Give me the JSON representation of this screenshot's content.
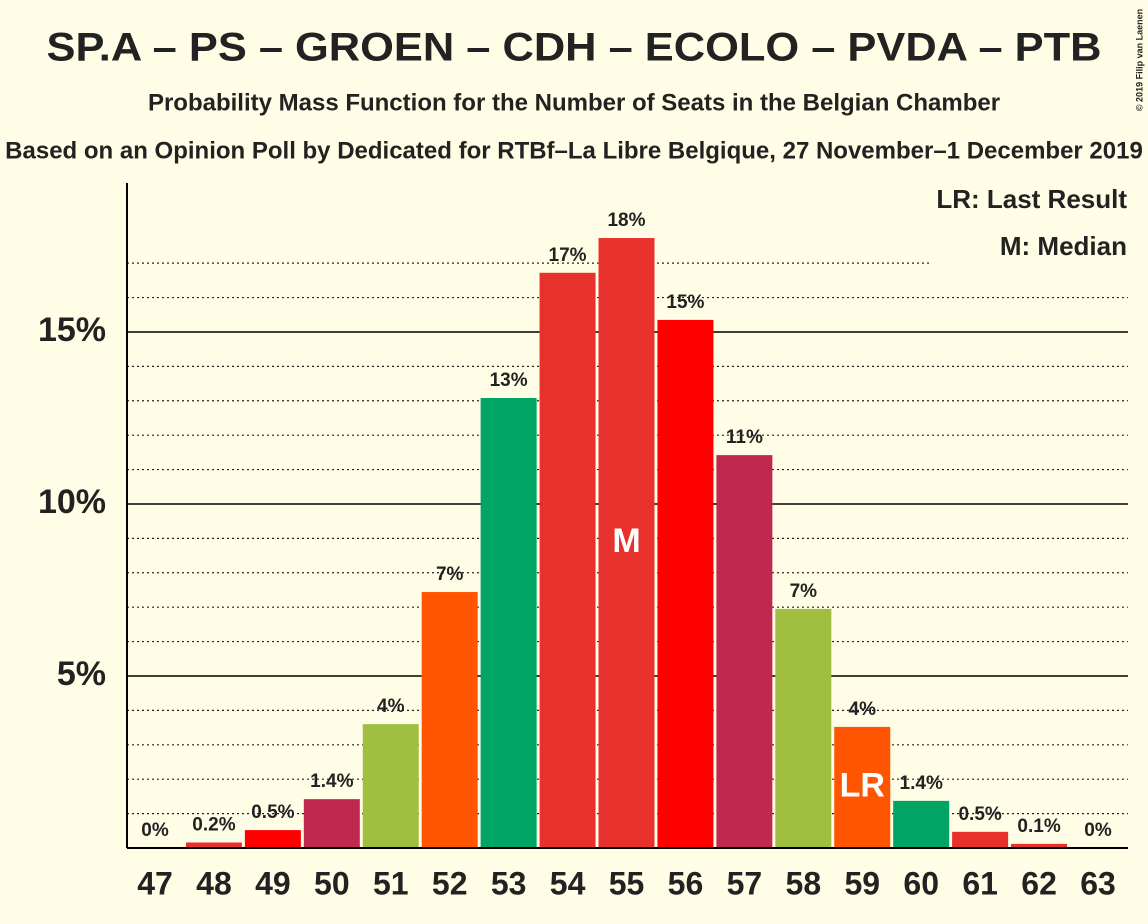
{
  "chart_data": {
    "type": "bar",
    "title": "SP.A – PS – GROEN – CDH – ECOLO – PVDA – PTB",
    "subtitle": "Probability Mass Function for the Number of Seats in the Belgian Chamber",
    "subtitle2": "Based on an Opinion Poll by Dedicated for RTBf–La Libre Belgique, 27 November–1 December 2019",
    "copyright": "© 2019 Filip van Laenen",
    "categories": [
      "47",
      "48",
      "49",
      "50",
      "51",
      "52",
      "53",
      "54",
      "55",
      "56",
      "57",
      "58",
      "59",
      "60",
      "61",
      "62",
      "63"
    ],
    "values": [
      0,
      0.16,
      0.52,
      1.42,
      3.6,
      7.44,
      13.08,
      16.72,
      17.73,
      15.35,
      11.42,
      6.95,
      3.52,
      1.37,
      0.47,
      0.12,
      0
    ],
    "value_labels": [
      "0%",
      "0.2%",
      "0.5%",
      "1.4%",
      "4%",
      "7%",
      "13%",
      "17%",
      "18%",
      "15%",
      "11%",
      "7%",
      "4%",
      "1.4%",
      "0.5%",
      "0.1%",
      "0%"
    ],
    "colors": [
      "#e8302c",
      "#e8302c",
      "#ff0000",
      "#c0284f",
      "#a0bf40",
      "#ff5500",
      "#00a465",
      "#e8302c",
      "#e8302c",
      "#ff0000",
      "#c0284f",
      "#a0bf40",
      "#ff5500",
      "#00a465",
      "#e8302c",
      "#e8302c",
      "#e8302c"
    ],
    "marker_labels": [
      null,
      null,
      null,
      null,
      null,
      null,
      null,
      null,
      "M",
      null,
      null,
      null,
      "LR",
      null,
      null,
      null,
      null
    ],
    "legend": [
      "LR: Last Result",
      "M: Median"
    ],
    "ylim": [
      0,
      19.33
    ],
    "yticks": [
      {
        "value": 5,
        "label": "5%"
      },
      {
        "value": 10,
        "label": "10%"
      },
      {
        "value": 15,
        "label": "15%"
      }
    ],
    "minor_yticks": [
      1,
      2,
      3,
      4,
      6,
      7,
      8,
      9,
      11,
      12,
      13,
      14,
      16,
      17
    ]
  }
}
